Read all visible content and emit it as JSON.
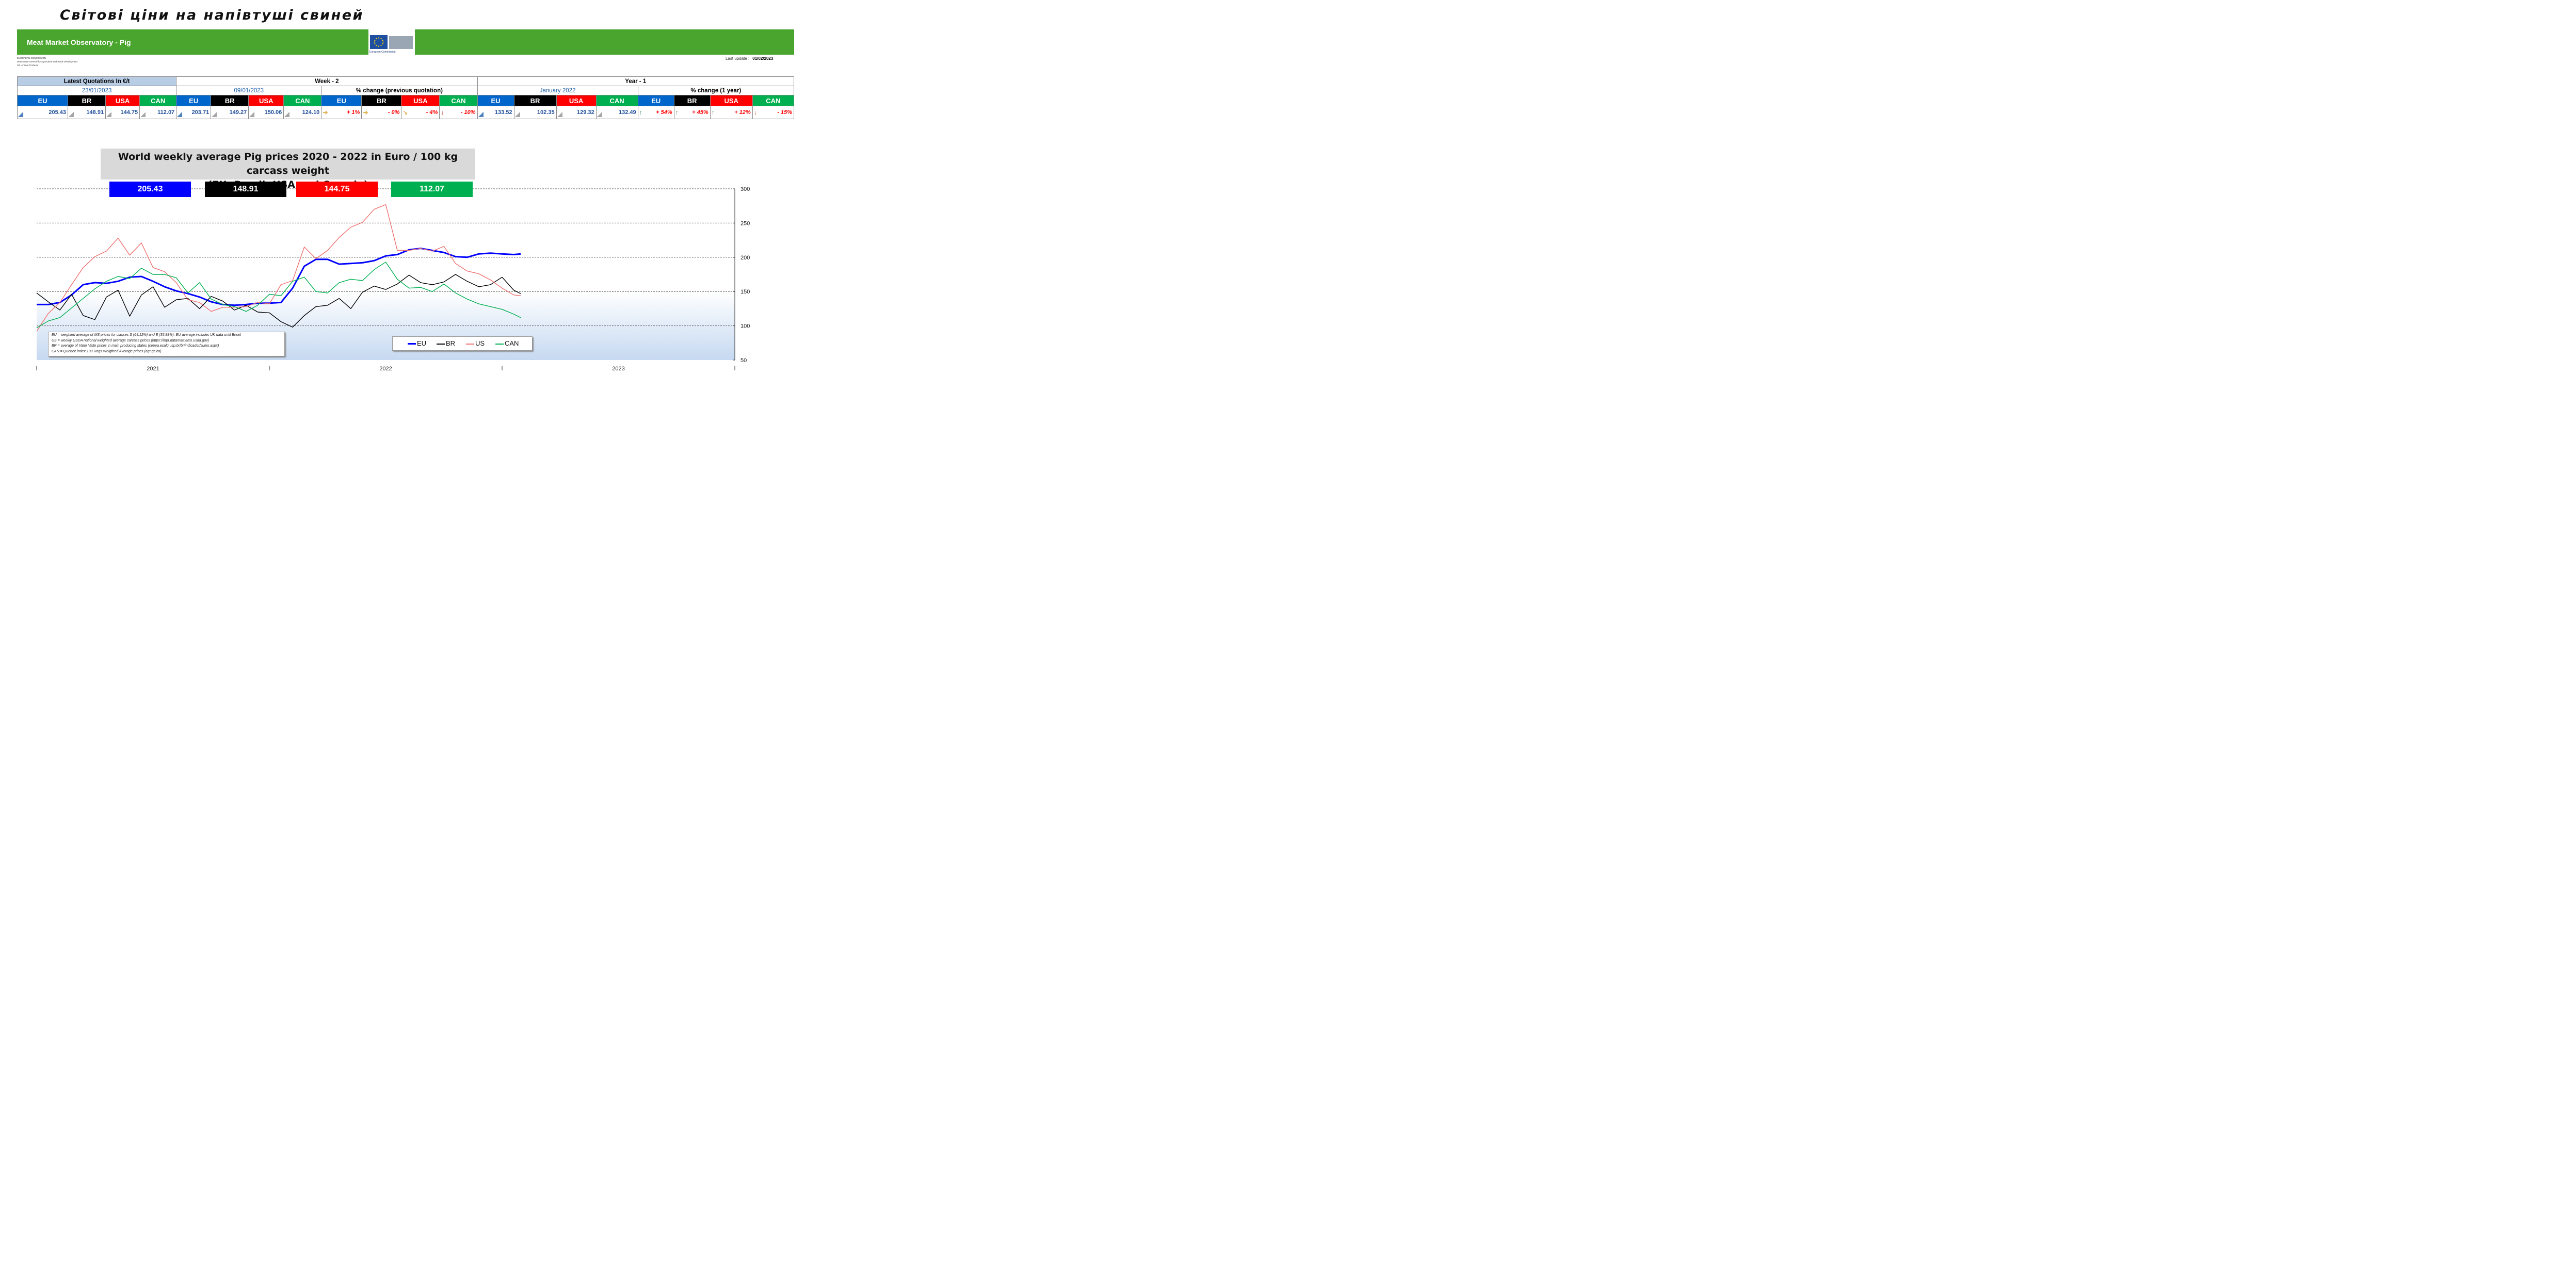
{
  "page_title": "Світові ціни на напівтуші свиней",
  "banner": {
    "title": "Meat Market Observatory - Pig",
    "logo_text": "European Commission",
    "color": "#4aa52e"
  },
  "subheader_lines": [
    "EUROPEAN COMMISSION",
    "Directorate-General for Agriculture and Rural Development",
    "G3. Animal Products"
  ],
  "last_update": {
    "label": "Last update :",
    "value": "01/02/2023"
  },
  "quotes": {
    "latest_header": "Latest Quotations In €/t",
    "latest_date": "23/01/2023",
    "week_header": "Week - 2",
    "week_date": "09/01/2023",
    "week_change_header": "% change (previous quotation)",
    "year_header": "Year - 1",
    "year_date": "January 2022",
    "year_change_header": "% change (1 year)",
    "regions": [
      "EU",
      "BR",
      "USA",
      "CAN"
    ],
    "latest": [
      "205.43",
      "148.91",
      "144.75",
      "112.07"
    ],
    "week": [
      "203.71",
      "149.27",
      "150.06",
      "124.10"
    ],
    "week_change": [
      "+ 1%",
      "- 0%",
      "- 4%",
      "- 10%"
    ],
    "week_change_icons": [
      "arrow-right-icon",
      "arrow-right-icon",
      "arrow-down-right-icon",
      "arrow-down-icon"
    ],
    "year": [
      "133.52",
      "102.35",
      "129.32",
      "132.49"
    ],
    "year_change": [
      "+ 54%",
      "+ 45%",
      "+ 12%",
      "- 15%"
    ],
    "year_change_icons": [
      "arrow-up-icon",
      "arrow-up-icon",
      "arrow-up-icon",
      "arrow-down-icon"
    ]
  },
  "badges": {
    "eu": "205.43",
    "br": "148.91",
    "us": "144.75",
    "can": "112.07"
  },
  "colors": {
    "eu": "#0000ff",
    "br": "#000000",
    "us": "#ff0000",
    "can": "#00b050"
  },
  "notes": [
    "EU   = weighted average of MS prices for classes S (64.12%) and E (35.88%). EU average includes UK data  until Brexit",
    "US   = weekly USDA national weighted average carcass prices (https://mpr.datamart.ams.usda.gov)",
    "BR   = average of Valor Viste prices in main producing states (cepea.esalq.usp.br/br/indicador/suino.aspx)",
    "CAN = Quebec index 100 Hogs Weighted Average prices (agr.gc.ca)"
  ],
  "chart_data": {
    "type": "line",
    "title": "World weekly average Pig prices 2020 - 2022  in Euro / 100 kg carcass weight\n(EU, Brazil, USA and Canada)",
    "title_lines": [
      "World weekly average Pig prices 2020 - 2022  in Euro / 100 kg carcass weight",
      "(EU, Brazil, USA and Canada)"
    ],
    "xlabel": "",
    "ylabel": "",
    "x_tick_labels": [
      "2021",
      "2022",
      "2023"
    ],
    "x_range": [
      2021.0,
      2024.0
    ],
    "ylim": [
      50,
      300
    ],
    "y_ticks": [
      50,
      100,
      150,
      200,
      250,
      300
    ],
    "grid_dashed_at": [
      100,
      150,
      200,
      250,
      300
    ],
    "legend_position": "bottom-center",
    "series": [
      {
        "name": "EU",
        "color": "#0000ff",
        "x": [
          2021.0,
          2021.05,
          2021.1,
          2021.15,
          2021.2,
          2021.25,
          2021.3,
          2021.35,
          2021.4,
          2021.45,
          2021.5,
          2021.55,
          2021.6,
          2021.65,
          2021.7,
          2021.75,
          2021.8,
          2021.85,
          2021.9,
          2021.95,
          2022.0,
          2022.05,
          2022.1,
          2022.15,
          2022.2,
          2022.25,
          2022.3,
          2022.35,
          2022.4,
          2022.45,
          2022.5,
          2022.55,
          2022.6,
          2022.65,
          2022.7,
          2022.75,
          2022.8,
          2022.85,
          2022.9,
          2022.95,
          2023.0,
          2023.05,
          2023.08
        ],
        "y": [
          131,
          131,
          134,
          145,
          160,
          163,
          162,
          165,
          171,
          172,
          165,
          157,
          151,
          147,
          142,
          135,
          131,
          130,
          131,
          133,
          133,
          134,
          155,
          187,
          197,
          197,
          190,
          191,
          192,
          195,
          202,
          204,
          211,
          213,
          210,
          207,
          201,
          200,
          205,
          206,
          205,
          204,
          205
        ]
      },
      {
        "name": "BR",
        "color": "#000000",
        "x": [
          2021.0,
          2021.05,
          2021.1,
          2021.15,
          2021.2,
          2021.25,
          2021.3,
          2021.35,
          2021.4,
          2021.45,
          2021.5,
          2021.55,
          2021.6,
          2021.65,
          2021.7,
          2021.75,
          2021.8,
          2021.85,
          2021.9,
          2021.95,
          2022.0,
          2022.05,
          2022.1,
          2022.15,
          2022.2,
          2022.25,
          2022.3,
          2022.35,
          2022.4,
          2022.45,
          2022.5,
          2022.55,
          2022.6,
          2022.65,
          2022.7,
          2022.75,
          2022.8,
          2022.85,
          2022.9,
          2022.95,
          2023.0,
          2023.05,
          2023.08
        ],
        "y": [
          148,
          135,
          123,
          146,
          115,
          109,
          142,
          152,
          114,
          145,
          157,
          127,
          138,
          140,
          125,
          143,
          136,
          123,
          130,
          120,
          119,
          106,
          98,
          115,
          128,
          130,
          140,
          125,
          149,
          158,
          153,
          161,
          174,
          163,
          160,
          164,
          175,
          165,
          157,
          160,
          171,
          152,
          147
        ]
      },
      {
        "name": "US",
        "color": "#f07070",
        "x": [
          2021.0,
          2021.05,
          2021.1,
          2021.15,
          2021.2,
          2021.25,
          2021.3,
          2021.35,
          2021.4,
          2021.45,
          2021.5,
          2021.55,
          2021.6,
          2021.65,
          2021.7,
          2021.75,
          2021.8,
          2021.85,
          2021.9,
          2021.95,
          2022.0,
          2022.05,
          2022.1,
          2022.15,
          2022.2,
          2022.25,
          2022.3,
          2022.35,
          2022.4,
          2022.45,
          2022.5,
          2022.55,
          2022.6,
          2022.65,
          2022.7,
          2022.75,
          2022.8,
          2022.85,
          2022.9,
          2022.95,
          2023.0,
          2023.05,
          2023.08
        ],
        "y": [
          92,
          118,
          134,
          160,
          185,
          201,
          209,
          228,
          203,
          221,
          185,
          179,
          163,
          138,
          134,
          121,
          127,
          127,
          128,
          134,
          132,
          160,
          166,
          215,
          198,
          210,
          229,
          244,
          251,
          270,
          277,
          210,
          210,
          213,
          209,
          216,
          191,
          180,
          176,
          167,
          155,
          145,
          144
        ]
      },
      {
        "name": "CAN",
        "color": "#00b050",
        "x": [
          2021.0,
          2021.05,
          2021.1,
          2021.15,
          2021.2,
          2021.25,
          2021.3,
          2021.35,
          2021.4,
          2021.45,
          2021.5,
          2021.55,
          2021.6,
          2021.65,
          2021.7,
          2021.75,
          2021.8,
          2021.85,
          2021.9,
          2021.95,
          2022.0,
          2022.05,
          2022.1,
          2022.15,
          2022.2,
          2022.25,
          2022.3,
          2022.35,
          2022.4,
          2022.45,
          2022.5,
          2022.55,
          2022.6,
          2022.65,
          2022.7,
          2022.75,
          2022.8,
          2022.85,
          2022.9,
          2022.95,
          2023.0,
          2023.05,
          2023.08
        ],
        "y": [
          97,
          107,
          112,
          126,
          140,
          154,
          165,
          172,
          169,
          184,
          175,
          175,
          170,
          148,
          163,
          139,
          131,
          128,
          121,
          130,
          146,
          144,
          165,
          171,
          150,
          148,
          163,
          168,
          166,
          182,
          193,
          168,
          155,
          156,
          150,
          161,
          148,
          139,
          132,
          128,
          124,
          117,
          112
        ]
      }
    ]
  }
}
